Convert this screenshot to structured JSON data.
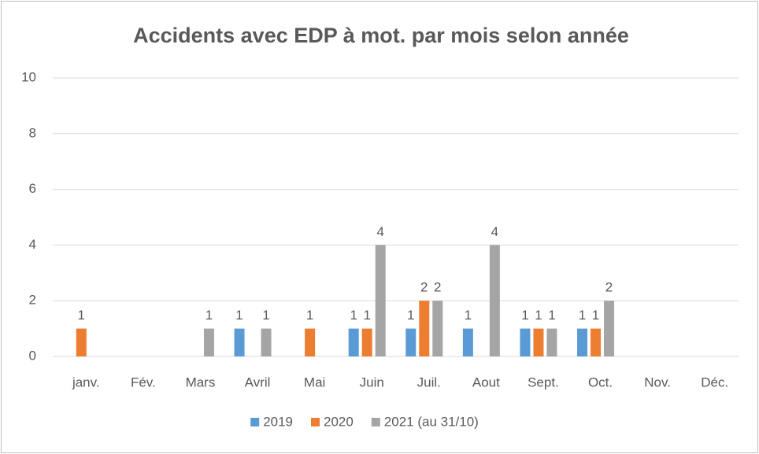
{
  "chart_data": {
    "type": "bar",
    "title": "Accidents avec EDP à mot. par mois selon année",
    "categories": [
      "janv.",
      "Fév.",
      "Mars",
      "Avril",
      "Mai",
      "Juin",
      "Juil.",
      "Aout",
      "Sept.",
      "Oct.",
      "Nov.",
      "Déc."
    ],
    "series": [
      {
        "name": "2019",
        "color": "#5b9bd5",
        "values": [
          null,
          null,
          null,
          1,
          null,
          1,
          1,
          1,
          1,
          1,
          null,
          null
        ]
      },
      {
        "name": "2020",
        "color": "#ed7d31",
        "values": [
          1,
          null,
          null,
          null,
          1,
          1,
          2,
          null,
          1,
          1,
          null,
          null
        ]
      },
      {
        "name": "2021 (au 31/10)",
        "color": "#a5a5a5",
        "values": [
          null,
          null,
          1,
          1,
          null,
          4,
          2,
          4,
          1,
          2,
          null,
          null
        ]
      }
    ],
    "ylim": [
      0,
      10
    ],
    "yticks": [
      0,
      2,
      4,
      6,
      8,
      10
    ],
    "grid": true,
    "legend": "bottom"
  }
}
